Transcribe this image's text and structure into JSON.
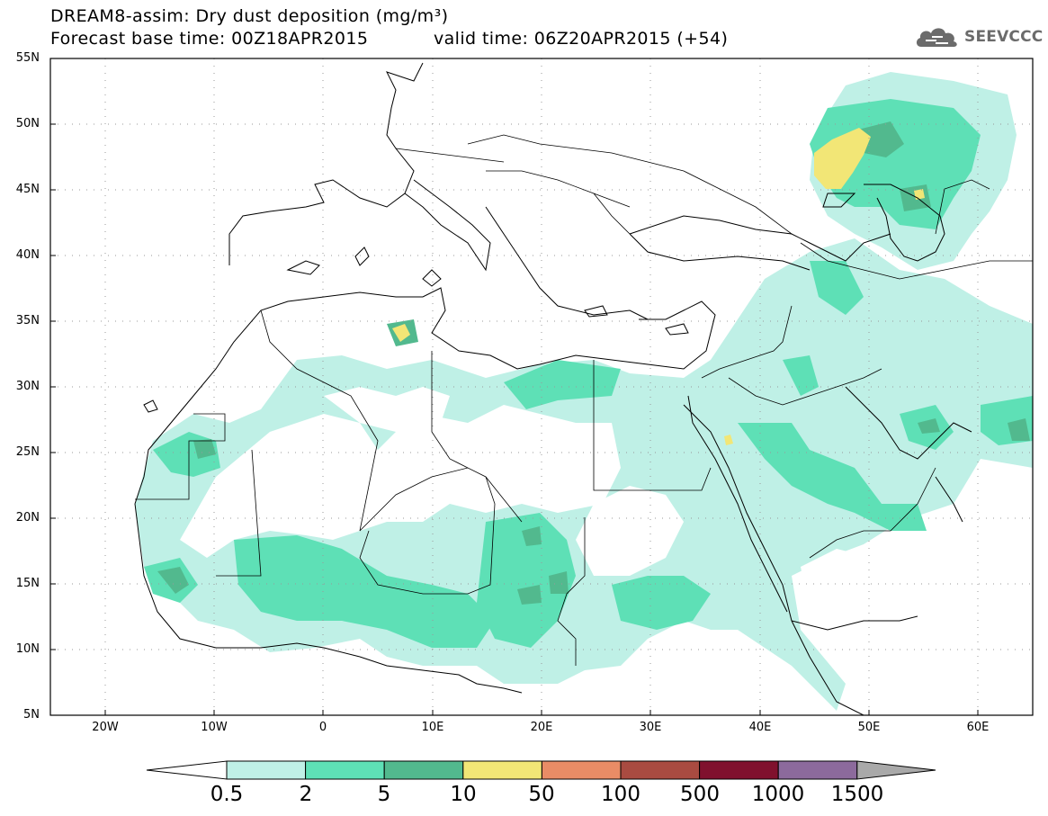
{
  "header": {
    "title_line1": "DREAM8-assim: Dry dust deposition (mg/m³)",
    "title_line2": "Forecast base time: 00Z18APR2015",
    "valid_time": "valid time: 06Z20APR2015 (+54)",
    "logo_text": "SEEVCCC",
    "logo_icon": "cloud-logo-icon"
  },
  "map": {
    "projection": "lat-lon",
    "lon_range": [
      -25,
      65
    ],
    "lat_range": [
      5,
      55
    ],
    "grid": "dotted",
    "lat_labels": [
      "55N",
      "50N",
      "45N",
      "40N",
      "35N",
      "30N",
      "25N",
      "20N",
      "15N",
      "10N",
      "5N"
    ],
    "lon_labels": [
      "20W",
      "10W",
      "0",
      "10E",
      "20E",
      "30E",
      "40E",
      "50E",
      "60E"
    ]
  },
  "colorbar": {
    "labels": [
      "0.5",
      "2",
      "5",
      "10",
      "50",
      "100",
      "500",
      "1000",
      "1500"
    ],
    "colors": [
      "#bff0e6",
      "#5ee0b6",
      "#52b98e",
      "#f2e676",
      "#e98c66",
      "#a94b41",
      "#80112e",
      "#8c6a9c",
      "#a9a9a9"
    ],
    "low_end_color": "#ffffff",
    "high_end_color": "#a9a9a9"
  }
}
